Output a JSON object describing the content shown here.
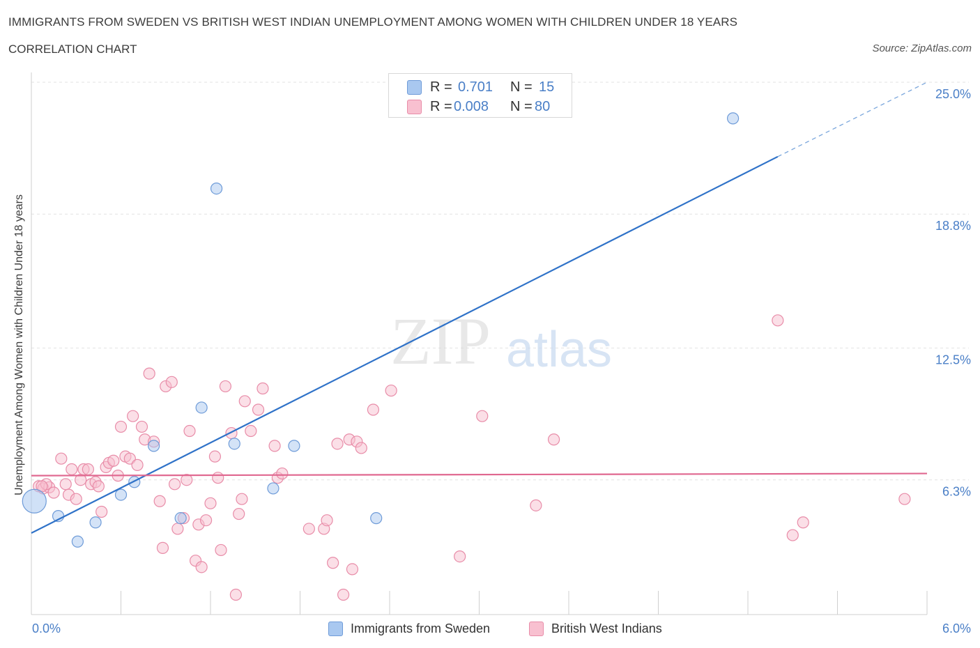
{
  "header": {
    "title": "IMMIGRANTS FROM SWEDEN VS BRITISH WEST INDIAN UNEMPLOYMENT AMONG WOMEN WITH CHILDREN UNDER 18 YEARS",
    "subtitle": "CORRELATION CHART",
    "source": "Source: ZipAtlas.com"
  },
  "watermark": {
    "zip": "ZIP",
    "atlas": "atlas"
  },
  "legend_top": {
    "r_label": "R =",
    "n_label": "N =",
    "rows": [
      {
        "r": "0.701",
        "n": "15",
        "color": "#a9c8f0",
        "border": "#6e9bd8"
      },
      {
        "r": "0.008",
        "n": "80",
        "color": "#f8c0d0",
        "border": "#e88ca8"
      }
    ]
  },
  "chart_data": {
    "type": "scatter",
    "title": "IMMIGRANTS FROM SWEDEN VS BRITISH WEST INDIAN UNEMPLOYMENT AMONG WOMEN WITH CHILDREN UNDER 18 YEARS",
    "subtitle": "CORRELATION CHART",
    "xlabel": "",
    "ylabel": "Unemployment Among Women with Children Under 18 years",
    "xlim": [
      0,
      6
    ],
    "ylim": [
      0,
      25
    ],
    "x_tick_labels": [
      "0.0%",
      "6.0%"
    ],
    "y_tick_labels": [
      "6.3%",
      "12.5%",
      "18.8%",
      "25.0%"
    ],
    "y_ticks": [
      6.3,
      12.5,
      18.8,
      25.0
    ],
    "grid": true,
    "legend_placement": "bottom-center",
    "series": [
      {
        "name": "Immigrants from Sweden",
        "color": "#a9c8f0",
        "stroke": "#6e9bd8",
        "line_color": "#2f72c8",
        "R": 0.701,
        "N": 15,
        "trend": {
          "x0": 0,
          "y0": 3.8,
          "x1": 5.0,
          "y1": 21.5,
          "dashed_to_x": 6.0,
          "dashed_to_y": 25.0
        },
        "points": [
          [
            0.02,
            5.3
          ],
          [
            0.18,
            4.6
          ],
          [
            0.31,
            3.4
          ],
          [
            0.43,
            4.3
          ],
          [
            0.6,
            5.6
          ],
          [
            0.69,
            6.2
          ],
          [
            0.82,
            7.9
          ],
          [
            1.0,
            4.5
          ],
          [
            1.14,
            9.7
          ],
          [
            1.24,
            20.0
          ],
          [
            1.36,
            8.0
          ],
          [
            1.62,
            5.9
          ],
          [
            1.76,
            7.9
          ],
          [
            2.31,
            4.5
          ],
          [
            4.7,
            23.3
          ]
        ]
      },
      {
        "name": "British West Indians",
        "color": "#f8c0d0",
        "stroke": "#e88ca8",
        "line_color": "#e06890",
        "R": 0.008,
        "N": 80,
        "trend": {
          "x0": 0,
          "y0": 6.5,
          "x1": 6.0,
          "y1": 6.6
        },
        "points": [
          [
            0.05,
            6.0
          ],
          [
            0.08,
            5.9
          ],
          [
            0.12,
            5.95
          ],
          [
            0.1,
            6.1
          ],
          [
            0.15,
            5.7
          ],
          [
            0.2,
            7.3
          ],
          [
            0.23,
            6.1
          ],
          [
            0.25,
            5.6
          ],
          [
            0.3,
            5.4
          ],
          [
            0.33,
            6.3
          ],
          [
            0.35,
            6.8
          ],
          [
            0.38,
            6.8
          ],
          [
            0.4,
            6.1
          ],
          [
            0.43,
            6.2
          ],
          [
            0.47,
            4.8
          ],
          [
            0.5,
            6.9
          ],
          [
            0.52,
            7.1
          ],
          [
            0.55,
            7.2
          ],
          [
            0.58,
            6.5
          ],
          [
            0.6,
            8.8
          ],
          [
            0.63,
            7.4
          ],
          [
            0.66,
            7.3
          ],
          [
            0.68,
            9.3
          ],
          [
            0.71,
            7.0
          ],
          [
            0.74,
            8.8
          ],
          [
            0.76,
            8.2
          ],
          [
            0.79,
            11.3
          ],
          [
            0.82,
            8.1
          ],
          [
            0.86,
            5.3
          ],
          [
            0.88,
            3.1
          ],
          [
            0.9,
            10.7
          ],
          [
            0.94,
            10.9
          ],
          [
            0.96,
            6.1
          ],
          [
            0.98,
            4.0
          ],
          [
            1.02,
            4.5
          ],
          [
            1.04,
            6.3
          ],
          [
            1.06,
            8.6
          ],
          [
            1.1,
            2.5
          ],
          [
            1.12,
            4.2
          ],
          [
            1.14,
            2.2
          ],
          [
            1.17,
            4.4
          ],
          [
            1.2,
            5.2
          ],
          [
            1.23,
            7.4
          ],
          [
            1.25,
            6.4
          ],
          [
            1.27,
            3.0
          ],
          [
            1.3,
            10.7
          ],
          [
            1.34,
            8.5
          ],
          [
            1.37,
            0.9
          ],
          [
            1.39,
            4.7
          ],
          [
            1.41,
            5.4
          ],
          [
            1.43,
            10.0
          ],
          [
            1.47,
            8.6
          ],
          [
            1.52,
            9.6
          ],
          [
            1.55,
            10.6
          ],
          [
            1.63,
            7.9
          ],
          [
            1.65,
            6.4
          ],
          [
            1.68,
            6.6
          ],
          [
            1.86,
            4.0
          ],
          [
            1.96,
            4.0
          ],
          [
            1.98,
            4.4
          ],
          [
            2.02,
            2.4
          ],
          [
            2.05,
            8.0
          ],
          [
            2.09,
            0.9
          ],
          [
            2.13,
            8.2
          ],
          [
            2.15,
            2.1
          ],
          [
            2.18,
            8.1
          ],
          [
            2.21,
            7.8
          ],
          [
            2.29,
            9.6
          ],
          [
            2.41,
            10.5
          ],
          [
            2.87,
            2.7
          ],
          [
            3.02,
            9.3
          ],
          [
            3.38,
            5.1
          ],
          [
            3.5,
            8.2
          ],
          [
            5.0,
            13.8
          ],
          [
            5.1,
            3.7
          ],
          [
            5.17,
            4.3
          ],
          [
            5.85,
            5.4
          ],
          [
            0.07,
            6.0
          ],
          [
            0.27,
            6.8
          ],
          [
            0.45,
            6.0
          ]
        ]
      }
    ]
  }
}
